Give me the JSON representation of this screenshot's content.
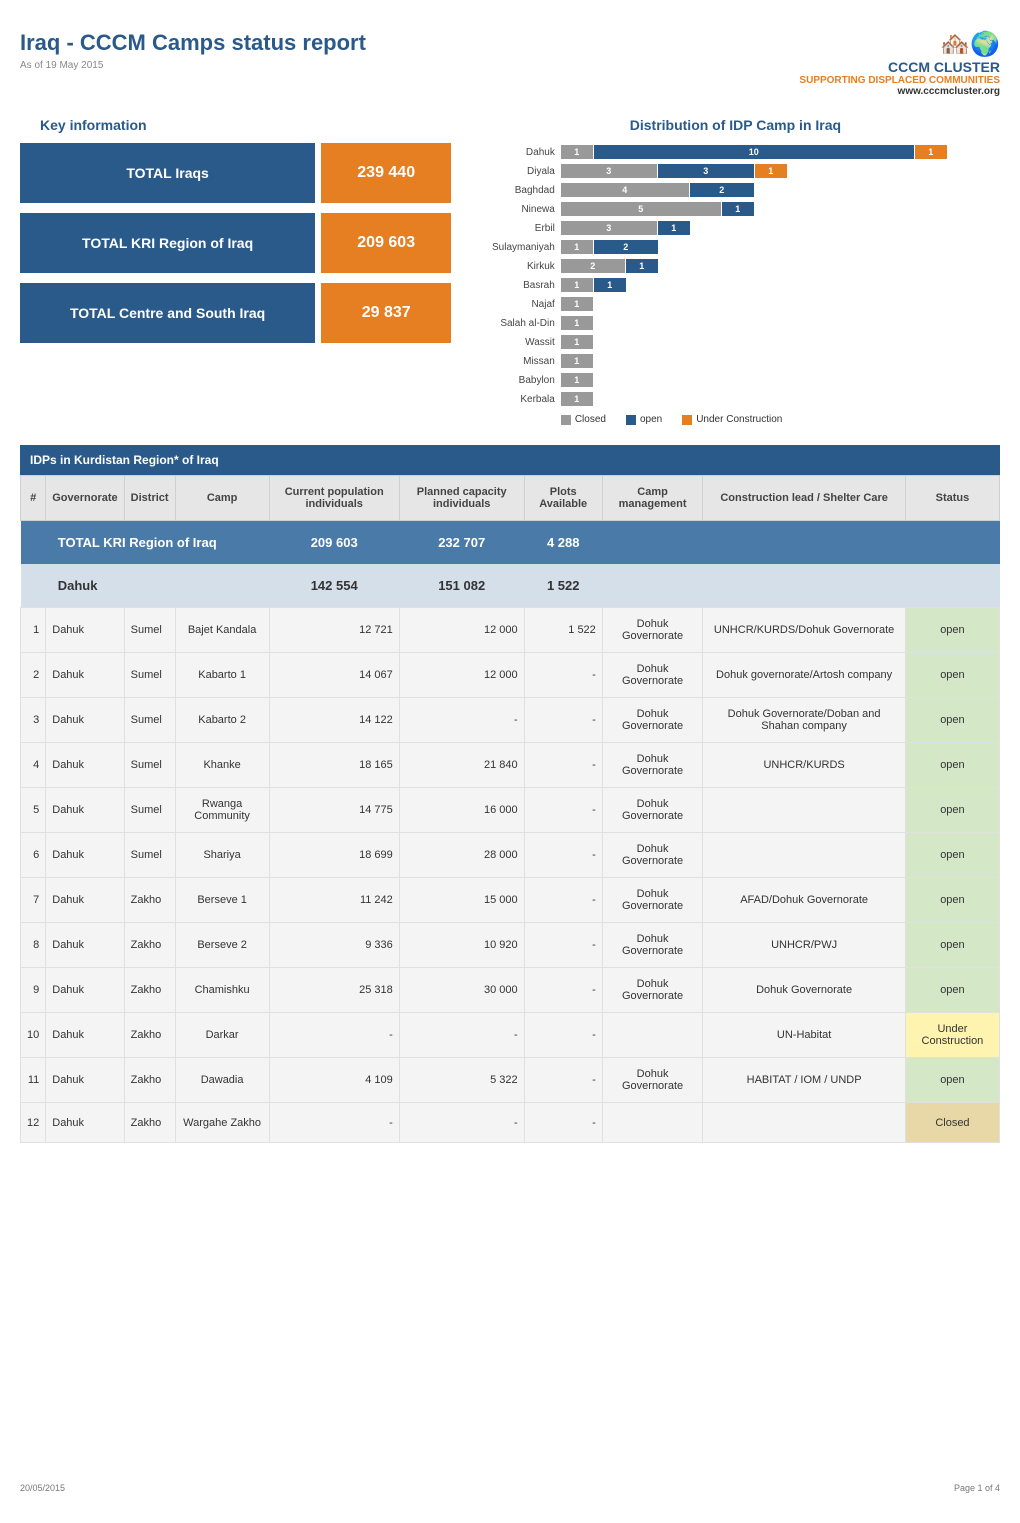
{
  "header": {
    "title": "Iraq - CCCM Camps status report",
    "asof": "As of 19 May 2015",
    "logo_main": "CCCM CLUSTER",
    "logo_tag": "SUPPORTING DISPLACED COMMUNITIES",
    "logo_url": "www.cccmcluster.org"
  },
  "keyinfo": {
    "title": "Key information",
    "cards": [
      {
        "label": "TOTAL Iraqs",
        "value": "239 440"
      },
      {
        "label": "TOTAL KRI Region of Iraq",
        "value": "209 603"
      },
      {
        "label": "TOTAL Centre and South Iraq",
        "value": "29 837"
      }
    ]
  },
  "distribution": {
    "title": "Distribution of IDP Camp in Iraq",
    "max": 12,
    "colors": {
      "closed": "#999999",
      "open": "#2a5a8a",
      "uc": "#e67e22"
    },
    "rows": [
      {
        "label": "Dahuk",
        "closed": 1,
        "open": 10,
        "uc": 1
      },
      {
        "label": "Diyala",
        "closed": 3,
        "open": 3,
        "uc": 1
      },
      {
        "label": "Baghdad",
        "closed": 4,
        "open": 2,
        "uc": 0
      },
      {
        "label": "Ninewa",
        "closed": 5,
        "open": 1,
        "uc": 0
      },
      {
        "label": "Erbil",
        "closed": 3,
        "open": 1,
        "uc": 0
      },
      {
        "label": "Sulaymaniyah",
        "closed": 1,
        "open": 2,
        "uc": 0
      },
      {
        "label": "Kirkuk",
        "closed": 2,
        "open": 1,
        "uc": 0
      },
      {
        "label": "Basrah",
        "closed": 1,
        "open": 1,
        "uc": 0
      },
      {
        "label": "Najaf",
        "closed": 1,
        "open": 0,
        "uc": 0
      },
      {
        "label": "Salah al-Din",
        "closed": 1,
        "open": 0,
        "uc": 0
      },
      {
        "label": "Wassit",
        "closed": 1,
        "open": 0,
        "uc": 0
      },
      {
        "label": "Missan",
        "closed": 1,
        "open": 0,
        "uc": 0
      },
      {
        "label": "Babylon",
        "closed": 1,
        "open": 0,
        "uc": 0
      },
      {
        "label": "Kerbala",
        "closed": 1,
        "open": 0,
        "uc": 0
      }
    ],
    "legend": [
      {
        "label": "Closed",
        "color": "#999999"
      },
      {
        "label": "open",
        "color": "#2a5a8a"
      },
      {
        "label": "Under Construction",
        "color": "#e67e22"
      }
    ]
  },
  "section_bar": "IDPs in Kurdistan Region* of Iraq",
  "columns": [
    "#",
    "Governorate",
    "District",
    "Camp",
    "Current population individuals",
    "Planned capacity individuals",
    "Plots Available",
    "Camp management",
    "Construction lead / Shelter Care",
    "Status"
  ],
  "total_row": {
    "label": "TOTAL KRI Region of Iraq",
    "pop": "209 603",
    "cap": "232 707",
    "plots": "4 288"
  },
  "sub_row": {
    "label": "Dahuk",
    "pop": "142 554",
    "cap": "151 082",
    "plots": "1 522"
  },
  "rows": [
    {
      "n": "1",
      "gov": "Dahuk",
      "dist": "Sumel",
      "camp": "Bajet Kandala",
      "pop": "12 721",
      "cap": "12 000",
      "plots": "1 522",
      "mgmt": "Dohuk Governorate",
      "lead": "UNHCR/KURDS/Dohuk Governorate",
      "status": "open",
      "statusClass": "status-open"
    },
    {
      "n": "2",
      "gov": "Dahuk",
      "dist": "Sumel",
      "camp": "Kabarto 1",
      "pop": "14 067",
      "cap": "12 000",
      "plots": "-",
      "mgmt": "Dohuk Governorate",
      "lead": "Dohuk governorate/Artosh company",
      "status": "open",
      "statusClass": "status-open"
    },
    {
      "n": "3",
      "gov": "Dahuk",
      "dist": "Sumel",
      "camp": "Kabarto 2",
      "pop": "14 122",
      "cap": "-",
      "plots": "-",
      "mgmt": "Dohuk Governorate",
      "lead": "Dohuk Governorate/Doban and Shahan company",
      "status": "open",
      "statusClass": "status-open"
    },
    {
      "n": "4",
      "gov": "Dahuk",
      "dist": "Sumel",
      "camp": "Khanke",
      "pop": "18 165",
      "cap": "21 840",
      "plots": "-",
      "mgmt": "Dohuk Governorate",
      "lead": "UNHCR/KURDS",
      "status": "open",
      "statusClass": "status-open"
    },
    {
      "n": "5",
      "gov": "Dahuk",
      "dist": "Sumel",
      "camp": "Rwanga Community",
      "pop": "14 775",
      "cap": "16 000",
      "plots": "-",
      "mgmt": "Dohuk Governorate",
      "lead": "",
      "status": "open",
      "statusClass": "status-open"
    },
    {
      "n": "6",
      "gov": "Dahuk",
      "dist": "Sumel",
      "camp": "Shariya",
      "pop": "18 699",
      "cap": "28 000",
      "plots": "-",
      "mgmt": "Dohuk Governorate",
      "lead": "",
      "status": "open",
      "statusClass": "status-open"
    },
    {
      "n": "7",
      "gov": "Dahuk",
      "dist": "Zakho",
      "camp": "Berseve 1",
      "pop": "11 242",
      "cap": "15 000",
      "plots": "-",
      "mgmt": "Dohuk Governorate",
      "lead": "AFAD/Dohuk Governorate",
      "status": "open",
      "statusClass": "status-open"
    },
    {
      "n": "8",
      "gov": "Dahuk",
      "dist": "Zakho",
      "camp": "Berseve 2",
      "pop": "9 336",
      "cap": "10 920",
      "plots": "-",
      "mgmt": "Dohuk Governorate",
      "lead": "UNHCR/PWJ",
      "status": "open",
      "statusClass": "status-open"
    },
    {
      "n": "9",
      "gov": "Dahuk",
      "dist": "Zakho",
      "camp": "Chamishku",
      "pop": "25 318",
      "cap": "30 000",
      "plots": "-",
      "mgmt": "Dohuk Governorate",
      "lead": "Dohuk Governorate",
      "status": "open",
      "statusClass": "status-open"
    },
    {
      "n": "10",
      "gov": "Dahuk",
      "dist": "Zakho",
      "camp": "Darkar",
      "pop": "-",
      "cap": "-",
      "plots": "-",
      "mgmt": "",
      "lead": "UN-Habitat",
      "status": "Under Construction",
      "statusClass": "status-uc"
    },
    {
      "n": "11",
      "gov": "Dahuk",
      "dist": "Zakho",
      "camp": "Dawadia",
      "pop": "4 109",
      "cap": "5 322",
      "plots": "-",
      "mgmt": "Dohuk Governorate",
      "lead": "HABITAT / IOM / UNDP",
      "status": "open",
      "statusClass": "status-open"
    },
    {
      "n": "12",
      "gov": "Dahuk",
      "dist": "Zakho",
      "camp": "Wargahe Zakho",
      "pop": "-",
      "cap": "-",
      "plots": "-",
      "mgmt": "",
      "lead": "",
      "status": "Closed",
      "statusClass": "status-closed"
    }
  ],
  "footer": {
    "left": "20/05/2015",
    "right": "Page 1 of 4"
  }
}
